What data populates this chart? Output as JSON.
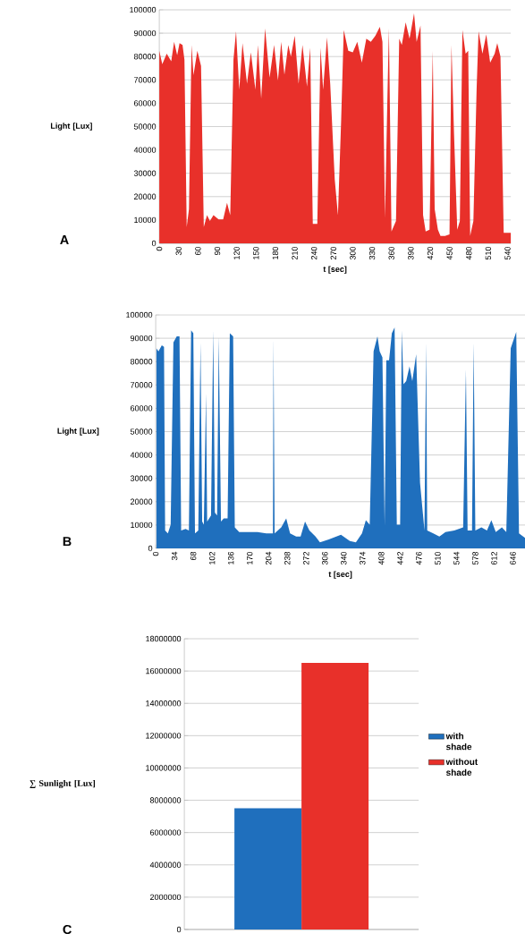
{
  "chart_data": [
    {
      "type": "area",
      "xlabel": "t [sec]",
      "ylabel": "Light [Lux]",
      "annotations": [
        "A"
      ],
      "grid": "y",
      "xlim": [
        0,
        545
      ],
      "ylim": [
        0,
        100000
      ],
      "xticks": [
        0,
        30,
        60,
        90,
        120,
        150,
        180,
        210,
        240,
        270,
        300,
        330,
        360,
        390,
        420,
        450,
        480,
        510,
        540
      ],
      "yticks": [
        0,
        10000,
        20000,
        30000,
        40000,
        50000,
        60000,
        70000,
        80000,
        90000,
        100000
      ],
      "x": [
        0,
        4.6,
        11.5,
        18.5,
        23,
        27.7,
        31.4,
        36,
        39,
        42.5,
        46,
        50,
        53,
        59,
        64.7,
        69,
        74,
        78.5,
        84,
        92,
        99,
        105,
        110,
        115,
        119,
        124,
        129,
        136,
        142,
        149,
        153,
        158,
        164,
        171,
        178,
        184,
        189,
        194,
        200,
        204,
        210,
        216,
        222,
        229,
        234,
        238,
        245,
        250,
        254,
        260,
        265,
        272,
        277,
        282,
        286,
        293,
        300,
        307,
        314,
        321,
        328,
        335,
        342,
        346,
        350,
        353,
        356,
        360,
        367,
        372,
        376,
        382,
        388,
        395,
        399,
        405,
        409,
        413,
        419,
        424,
        427,
        432,
        436,
        443,
        450,
        453,
        457,
        462,
        466,
        470,
        475,
        479,
        482,
        487,
        492,
        495,
        501,
        507,
        513,
        520,
        524,
        529,
        534,
        545
      ],
      "series": [
        {
          "color": "#e8302a",
          "values": [
            82500,
            76700,
            81200,
            78000,
            86300,
            80600,
            85700,
            85000,
            78600,
            7000,
            14700,
            85000,
            72000,
            82500,
            76000,
            7000,
            12100,
            9600,
            12100,
            10200,
            10200,
            17300,
            12100,
            78600,
            90800,
            65800,
            85700,
            68400,
            81800,
            65800,
            85000,
            62000,
            92000,
            71000,
            85000,
            69700,
            86300,
            72200,
            85000,
            80000,
            88900,
            68400,
            85000,
            67100,
            83800,
            8300,
            8300,
            83800,
            65800,
            88200,
            68400,
            27500,
            12100,
            53000,
            91400,
            82500,
            81800,
            86300,
            77400,
            87600,
            86300,
            88900,
            92700,
            86300,
            10900,
            53000,
            92000,
            5100,
            9600,
            87600,
            85000,
            94600,
            87600,
            98500,
            86300,
            93300,
            12100,
            5100,
            5800,
            82500,
            14700,
            5800,
            3200,
            3200,
            3800,
            85000,
            46700,
            5800,
            9600,
            91400,
            81200,
            82500,
            3200,
            9600,
            65800,
            90800,
            81200,
            89500,
            77400,
            81200,
            85700,
            80000,
            4500,
            4500
          ]
        }
      ]
    },
    {
      "type": "area",
      "xlabel": "t [sec]",
      "ylabel": "Light [Lux]",
      "annotations": [
        "B"
      ],
      "grid": "y",
      "xlim": [
        0,
        668
      ],
      "ylim": [
        0,
        100000
      ],
      "xticks": [
        0,
        34,
        68,
        102,
        136,
        170,
        204,
        238,
        272,
        306,
        340,
        374,
        408,
        442,
        476,
        510,
        544,
        578,
        612,
        646
      ],
      "yticks": [
        0,
        10000,
        20000,
        30000,
        40000,
        50000,
        60000,
        70000,
        80000,
        90000,
        100000
      ],
      "x": [
        1,
        5,
        11,
        15,
        17,
        22,
        27,
        32,
        38,
        43,
        46,
        54,
        60,
        64,
        68,
        71,
        77,
        81,
        84,
        87,
        91,
        93,
        100,
        104,
        107,
        111,
        114,
        118,
        123,
        130,
        134,
        140,
        143,
        151,
        167,
        184,
        200,
        208,
        212,
        213,
        215,
        227,
        236,
        243,
        254,
        262,
        270,
        278,
        289,
        297,
        313,
        335,
        351,
        362,
        373,
        380,
        387,
        394,
        401,
        405,
        410,
        414,
        417,
        422,
        427,
        432,
        436,
        442,
        445,
        448,
        453,
        459,
        464,
        471,
        478,
        486,
        489,
        491,
        502,
        513,
        524,
        540,
        556,
        561,
        564,
        572,
        575,
        578,
        589,
        599,
        607,
        615,
        626,
        634,
        642,
        652,
        657,
        668
      ],
      "series": [
        {
          "color": "#1f6fbd",
          "values": [
            85700,
            84400,
            87000,
            86300,
            7700,
            6400,
            10200,
            88200,
            90800,
            90800,
            7700,
            8300,
            7700,
            93400,
            92100,
            6400,
            7700,
            88200,
            11500,
            10200,
            66500,
            11500,
            14100,
            93400,
            15300,
            14100,
            90800,
            11500,
            12800,
            12800,
            92100,
            90800,
            9000,
            7000,
            7000,
            7000,
            6400,
            6400,
            6400,
            90200,
            6400,
            9000,
            12800,
            6400,
            5100,
            5100,
            11500,
            7700,
            5100,
            2600,
            3800,
            5800,
            3200,
            2600,
            6400,
            12100,
            10200,
            84400,
            90800,
            84400,
            81800,
            9600,
            80600,
            80600,
            92100,
            94600,
            10200,
            10200,
            93400,
            70300,
            71600,
            78000,
            71600,
            83100,
            28100,
            7700,
            88200,
            7700,
            6400,
            5100,
            7000,
            7700,
            9000,
            76700,
            7700,
            7700,
            88200,
            7700,
            9000,
            7700,
            12100,
            7000,
            9000,
            7000,
            85700,
            92700,
            6400,
            4500
          ]
        }
      ]
    },
    {
      "type": "bar",
      "ylabel": "∑ Sunlight [Lux]",
      "annotations": [
        "C"
      ],
      "grid": "y",
      "legend": "right",
      "categories": [
        null
      ],
      "ylim": [
        0,
        18000000
      ],
      "yticks": [
        0,
        2000000,
        4000000,
        6000000,
        8000000,
        10000000,
        12000000,
        14000000,
        16000000,
        18000000
      ],
      "series": [
        {
          "name": "with shade",
          "color": "#1f6fbd",
          "values": [
            7500000
          ]
        },
        {
          "name": "without shade",
          "color": "#e8302a",
          "values": [
            16500000
          ]
        }
      ]
    }
  ]
}
